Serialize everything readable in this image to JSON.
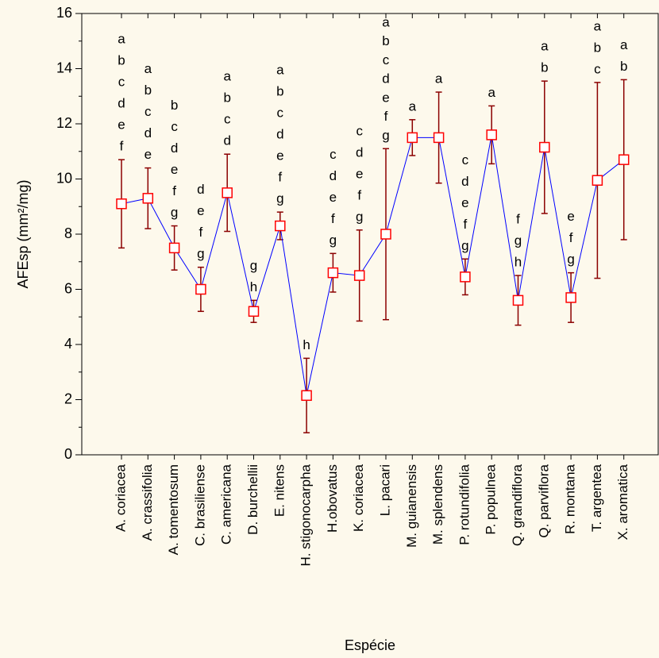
{
  "chart_data": {
    "type": "errorline",
    "y_label": "AFEsp (mm²/mg)",
    "x_label": "Espécie",
    "categories": [
      "A. coriacea",
      "A. crassifolia",
      "A. tomentosum",
      "C. brasiliense",
      "C. americana",
      "D. burchellii",
      "E. nitens",
      "H. stigonocarpha",
      "H.obovatus",
      "K. coriacea",
      "L. pacari",
      "M. guianensis",
      "M. splendens",
      "P. rotundifolia",
      "P. populnea",
      "Q. grandiflora",
      "Q. parviflora",
      "R. montana",
      "T. argentea",
      "X. aromatica"
    ],
    "values": [
      9.1,
      9.3,
      7.5,
      6.0,
      9.5,
      5.2,
      8.3,
      2.15,
      6.6,
      6.5,
      8.0,
      11.5,
      11.5,
      6.45,
      11.6,
      5.6,
      11.15,
      5.7,
      9.95,
      10.7
    ],
    "errors": [
      1.6,
      1.1,
      0.8,
      0.8,
      1.4,
      0.4,
      0.5,
      1.35,
      0.7,
      1.65,
      3.1,
      0.65,
      1.65,
      0.65,
      1.05,
      0.9,
      2.4,
      0.9,
      3.55,
      2.9
    ],
    "letters": [
      [
        "a",
        "b",
        "c",
        "d",
        "e",
        "f"
      ],
      [
        "a",
        "b",
        "c",
        "d",
        "e"
      ],
      [
        "b",
        "c",
        "d",
        "e",
        "f",
        "g"
      ],
      [
        "d",
        "e",
        "f",
        "g"
      ],
      [
        "a",
        "b",
        "c",
        "d"
      ],
      [
        "g",
        "h"
      ],
      [
        "a",
        "b",
        "c",
        "d",
        "e",
        "f",
        "g"
      ],
      [
        "h"
      ],
      [
        "c",
        "d",
        "e",
        "f",
        "g"
      ],
      [
        "c",
        "d",
        "e",
        "f",
        "g"
      ],
      [
        "a",
        "b",
        "c",
        "d",
        "e",
        "f",
        "g"
      ],
      [
        "a"
      ],
      [
        "a"
      ],
      [
        "c",
        "d",
        "e",
        "f",
        "g"
      ],
      [
        "a"
      ],
      [
        "f",
        "g",
        "h"
      ],
      [
        "a",
        "b"
      ],
      [
        "e",
        "f",
        "g"
      ],
      [
        "a",
        "b",
        "c"
      ],
      [
        "a",
        "b"
      ]
    ],
    "letter_colors": [
      "#000000",
      "#000000",
      "#000000",
      "#000000",
      "#000000",
      "#000000",
      "#000000",
      "#000000",
      "#000000",
      "#000000",
      "#000000",
      "#ff0000",
      "#ff0000",
      "#000000",
      "#ff0000",
      "#000000",
      "#000000",
      "#000000",
      "#000000",
      "#000000"
    ],
    "line_color": "#0000ff",
    "marker_color": "#ff0000",
    "error_color": "#8b0000",
    "ylim": [
      0,
      16
    ],
    "yticks": [
      0,
      2,
      4,
      6,
      8,
      10,
      12,
      14,
      16
    ]
  }
}
